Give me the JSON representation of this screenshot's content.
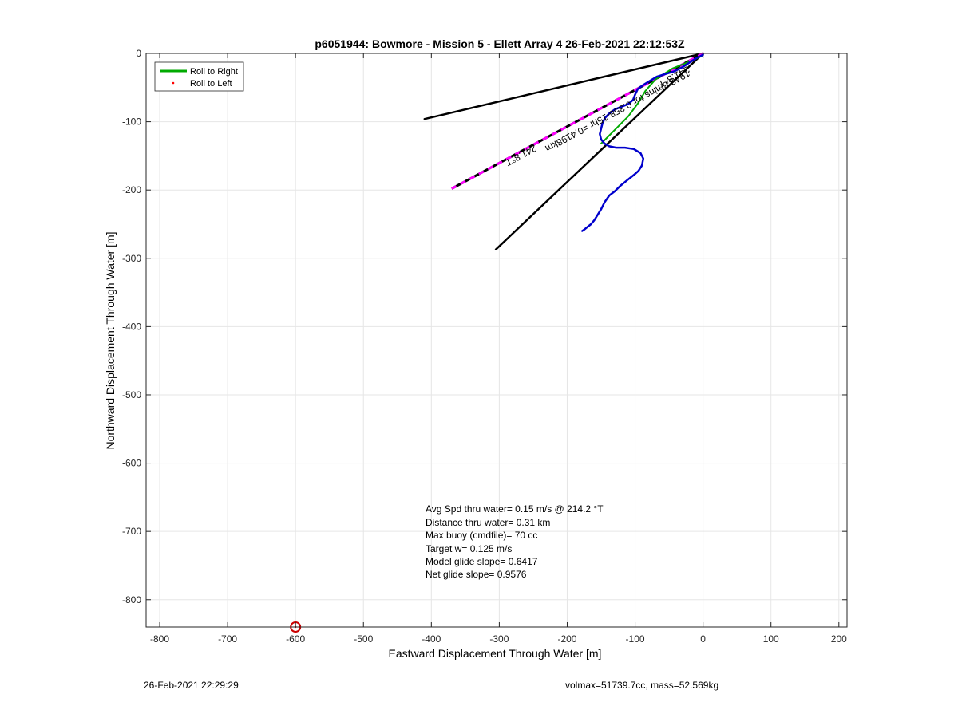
{
  "chart_data": {
    "type": "line",
    "title": "p6051944: Bowmore - Mission 5 - Ellett Array 4 26-Feb-2021 22:12:53Z",
    "xlabel": "Eastward Displacement Through Water [m]",
    "ylabel": "Northward Displacement Through Water [m]",
    "xlim": [
      -820,
      212
    ],
    "ylim": [
      -840,
      0
    ],
    "xticks": [
      -800,
      -700,
      -600,
      -500,
      -400,
      -300,
      -200,
      -100,
      0,
      100,
      200
    ],
    "yticks": [
      0,
      -100,
      -200,
      -300,
      -400,
      -500,
      -600,
      -700,
      -800
    ],
    "grid": true,
    "legend_position": "top-left",
    "legend": [
      {
        "label": "Roll to Right",
        "color": "#00aa00",
        "style": "line"
      },
      {
        "label": "Roll to Left",
        "color": "#ff0000",
        "style": "dot"
      }
    ],
    "series": [
      {
        "name": "Roll to Right",
        "color": "#00aa00",
        "x": [
          -2,
          -20,
          -45,
          -70,
          -85,
          -95,
          -110,
          -130,
          -150
        ],
        "y": [
          -4,
          -12,
          -22,
          -38,
          -55,
          -72,
          -92,
          -112,
          -132
        ]
      },
      {
        "name": "",
        "color": "#0000cc",
        "x": [
          0,
          -8,
          -18,
          -30,
          -42,
          -55,
          -68,
          -78,
          -88,
          -96,
          -100,
          -103,
          -110,
          -120,
          -130,
          -138,
          -144,
          -148,
          -150,
          -152,
          -150,
          -145,
          -138,
          -128,
          -115,
          -102,
          -92,
          -88,
          -90,
          -95,
          -102,
          -112,
          -122,
          -130,
          -138,
          -145,
          -150,
          -155,
          -160,
          -165,
          -170,
          -175,
          -178
        ],
        "y": [
          -2,
          -6,
          -12,
          -20,
          -26,
          -30,
          -34,
          -40,
          -46,
          -52,
          -60,
          -68,
          -74,
          -78,
          -82,
          -88,
          -94,
          -102,
          -110,
          -118,
          -126,
          -132,
          -136,
          -138,
          -138,
          -140,
          -146,
          -154,
          -164,
          -172,
          -178,
          -186,
          -194,
          -202,
          -208,
          -218,
          -228,
          -236,
          -244,
          -250,
          -254,
          -258,
          -260
        ]
      },
      {
        "name": "",
        "color": "#000000",
        "x": [
          0,
          -410
        ],
        "y": [
          0,
          -96
        ]
      },
      {
        "name": "",
        "color": "#000000",
        "x": [
          0,
          -305
        ],
        "y": [
          0,
          -287
        ]
      },
      {
        "name": "",
        "color": "#ff00ff",
        "style": "dashed",
        "x": [
          0,
          -370
        ],
        "y": [
          0,
          -198
        ]
      }
    ],
    "start_marker": {
      "x": -600,
      "y": -840,
      "color": "#cc0000"
    },
    "annotations": [
      {
        "text": "241.8°T",
        "x": -270,
        "y": -145,
        "rotate": 151.8
      },
      {
        "text": "1948.3mins for 0.358-15hr =0.4198km",
        "x": -128,
        "y": -80,
        "rotate": 151.8
      },
      {
        "text": "241.8°T",
        "x": -45,
        "y": -30,
        "rotate": 151.8
      }
    ],
    "stats": [
      "Avg Spd thru water=  0.15 m/s @ 214.2 °T",
      "Distance thru water=  0.31 km",
      "Max buoy (cmdfile)= 70 cc",
      "Target w= 0.125 m/s",
      "Model glide slope= 0.6417",
      "Net glide slope= 0.9576"
    ]
  },
  "footer": {
    "timestamp": "26-Feb-2021 22:29:29",
    "mass_info": "volmax=51739.7cc, mass=52.569kg"
  }
}
